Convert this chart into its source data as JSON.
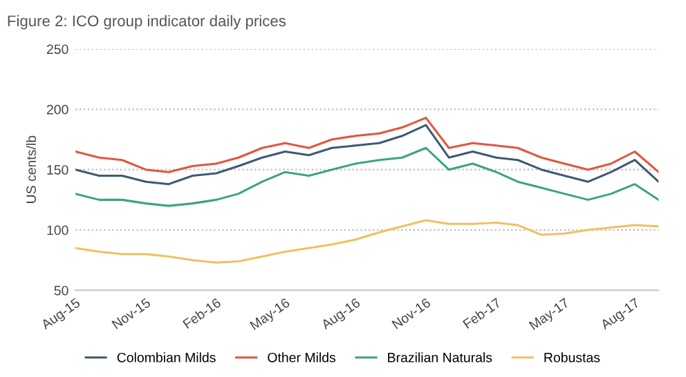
{
  "chart_data": {
    "type": "line",
    "title": "Figure 2: ICO group indicator daily prices",
    "ylabel": "US cents/lb",
    "x": [
      "2015-08-01",
      "2015-09-01",
      "2015-10-01",
      "2015-11-01",
      "2015-12-01",
      "2016-01-01",
      "2016-02-01",
      "2016-03-01",
      "2016-04-01",
      "2016-05-01",
      "2016-06-01",
      "2016-07-01",
      "2016-08-01",
      "2016-09-01",
      "2016-10-01",
      "2016-11-01",
      "2016-12-01",
      "2017-01-01",
      "2017-02-01",
      "2017-03-01",
      "2017-04-01",
      "2017-05-01",
      "2017-06-01",
      "2017-07-01",
      "2017-08-01",
      "2017-09-01"
    ],
    "series": [
      {
        "name": "Colombian Milds",
        "color": "#3d5a73",
        "values": [
          150,
          145,
          145,
          140,
          138,
          145,
          147,
          153,
          160,
          165,
          162,
          168,
          170,
          172,
          178,
          187,
          160,
          165,
          160,
          158,
          150,
          145,
          140,
          148,
          158,
          140
        ]
      },
      {
        "name": "Other Milds",
        "color": "#e3553f",
        "values": [
          165,
          160,
          158,
          150,
          148,
          153,
          155,
          160,
          168,
          172,
          168,
          175,
          178,
          180,
          185,
          193,
          168,
          172,
          170,
          168,
          160,
          155,
          150,
          155,
          165,
          148
        ]
      },
      {
        "name": "Brazilian Naturals",
        "color": "#3aa57f",
        "values": [
          130,
          125,
          125,
          122,
          120,
          122,
          125,
          130,
          140,
          148,
          145,
          150,
          155,
          158,
          160,
          168,
          150,
          155,
          148,
          140,
          135,
          130,
          125,
          130,
          138,
          125
        ]
      },
      {
        "name": "Robustas",
        "color": "#f0c060",
        "values": [
          85,
          82,
          80,
          80,
          78,
          75,
          73,
          74,
          78,
          82,
          85,
          88,
          92,
          98,
          103,
          108,
          105,
          105,
          106,
          104,
          96,
          97,
          100,
          102,
          104,
          103
        ]
      }
    ],
    "xlim": [
      "2015-08-01",
      "2017-09-01"
    ],
    "xticks": [
      {
        "value": "2015-08-01",
        "label": "Aug-15"
      },
      {
        "value": "2015-11-01",
        "label": "Nov-15"
      },
      {
        "value": "2016-02-01",
        "label": "Feb-16"
      },
      {
        "value": "2016-05-01",
        "label": "May-16"
      },
      {
        "value": "2016-08-01",
        "label": "Aug-16"
      },
      {
        "value": "2016-11-01",
        "label": "Nov-16"
      },
      {
        "value": "2017-02-01",
        "label": "Feb-17"
      },
      {
        "value": "2017-05-01",
        "label": "May-17"
      },
      {
        "value": "2017-08-01",
        "label": "Aug-17"
      }
    ],
    "ylim": [
      50,
      250
    ],
    "yticks": [
      50,
      100,
      150,
      200,
      250
    ],
    "grid": "y",
    "legend": "bottom",
    "marker": "none",
    "line_style": "solid"
  }
}
